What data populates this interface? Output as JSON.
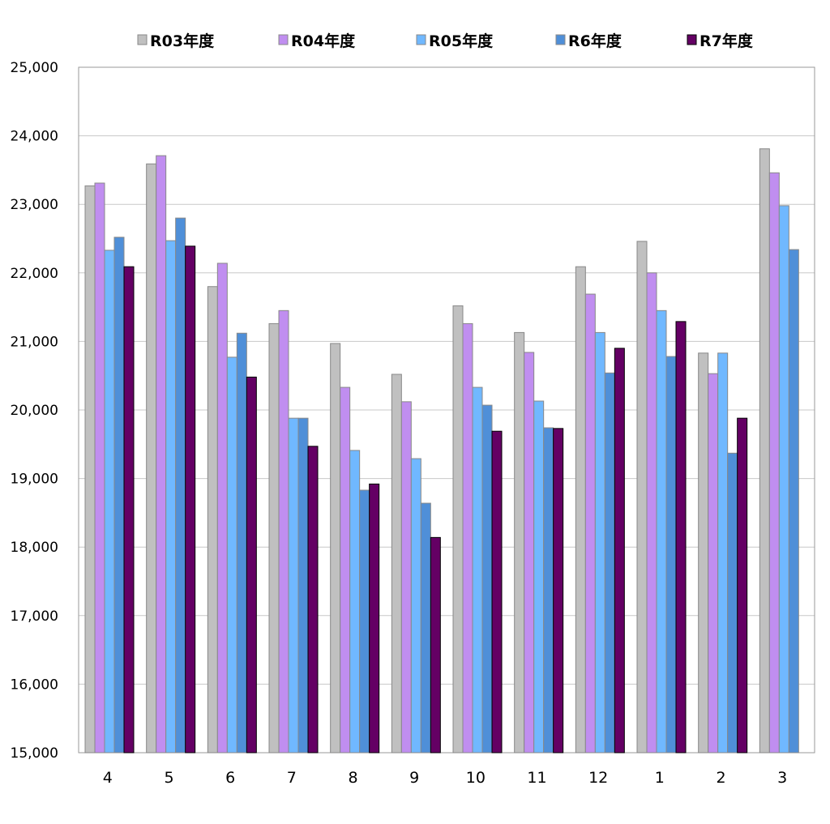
{
  "chart_data": {
    "type": "bar",
    "title": "",
    "xlabel": "",
    "ylabel": "",
    "ylim": [
      15000,
      25000
    ],
    "ytick_step": 1000,
    "grid": true,
    "legend_position": "top",
    "categories": [
      "4",
      "5",
      "6",
      "7",
      "8",
      "9",
      "10",
      "11",
      "12",
      "1",
      "2",
      "3"
    ],
    "series": [
      {
        "name": "R03年度",
        "color": "#c0c0c0",
        "values": [
          23270,
          23590,
          21800,
          21260,
          20970,
          20520,
          21520,
          21130,
          22090,
          22460,
          20830,
          23810
        ]
      },
      {
        "name": "R04年度",
        "color": "#c08ef0",
        "values": [
          23310,
          23710,
          22140,
          21450,
          20330,
          20120,
          21260,
          20840,
          21690,
          22000,
          20530,
          23460
        ]
      },
      {
        "name": "R05年度",
        "color": "#70b8ff",
        "values": [
          22330,
          22470,
          20770,
          19880,
          19410,
          19290,
          20330,
          20130,
          21130,
          21450,
          20830,
          22980
        ]
      },
      {
        "name": "R6年度",
        "color": "#4f8fd8",
        "values": [
          22520,
          22800,
          21120,
          19880,
          18830,
          18640,
          20070,
          19740,
          20540,
          20780,
          19370,
          22340
        ]
      },
      {
        "name": "R7年度",
        "color": "#640064",
        "values": [
          22090,
          22390,
          20480,
          19470,
          18920,
          18140,
          19690,
          19730,
          20900,
          21290,
          19880,
          null
        ]
      }
    ]
  }
}
